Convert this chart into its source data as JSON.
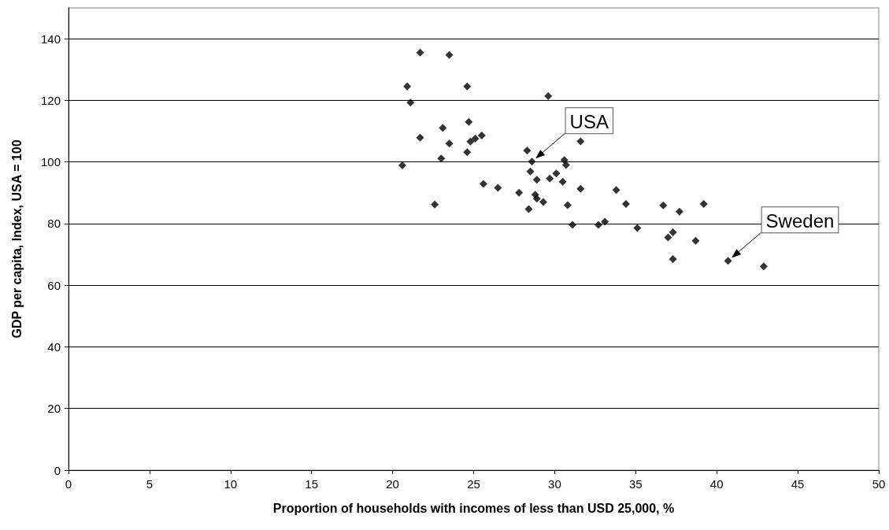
{
  "chart_data": {
    "type": "scatter",
    "xlabel": "Proportion of households with incomes of less than USD 25,000, %",
    "ylabel": "GDP per capita, Index, USA = 100",
    "xlim": [
      0,
      50
    ],
    "xticks": [
      0,
      5,
      10,
      15,
      20,
      25,
      30,
      35,
      40,
      45,
      50
    ],
    "ylim": [
      0,
      150
    ],
    "yticks": [
      0,
      20,
      40,
      60,
      80,
      100,
      120,
      140
    ],
    "grid": "y",
    "marker": "diamond",
    "color": "#000000",
    "x": [
      21.7,
      23.5,
      20.9,
      24.6,
      29.6,
      21.1,
      24.7,
      23.1,
      25.5,
      21.7,
      25.1,
      24.8,
      23.5,
      31.6,
      24.6,
      28.3,
      23.0,
      20.6,
      28.6,
      30.6,
      30.7,
      28.5,
      30.1,
      28.9,
      29.7,
      30.5,
      25.6,
      31.6,
      26.5,
      27.8,
      28.8,
      28.9,
      29.3,
      22.6,
      30.8,
      28.4,
      33.8,
      34.4,
      31.1,
      32.7,
      33.1,
      35.1,
      36.7,
      37.7,
      39.2,
      37.3,
      37.0,
      38.7,
      37.3,
      40.7,
      42.9
    ],
    "values": [
      135.5,
      134.7,
      124.5,
      124.5,
      121.4,
      119.3,
      113.0,
      111.0,
      108.6,
      107.9,
      107.6,
      106.6,
      106.0,
      106.7,
      103.2,
      103.7,
      101.1,
      98.9,
      100.1,
      100.6,
      99.0,
      96.9,
      96.3,
      94.2,
      94.6,
      93.6,
      92.9,
      91.3,
      91.6,
      90.0,
      89.4,
      88.1,
      87.0,
      86.2,
      86.0,
      84.7,
      90.9,
      86.4,
      79.6,
      79.6,
      80.6,
      78.6,
      85.9,
      83.9,
      86.4,
      77.2,
      75.5,
      74.4,
      68.5,
      67.9,
      66.1
    ],
    "annotations": [
      {
        "text": "USA",
        "x": 28.6,
        "y": 100.1
      },
      {
        "text": "Sweden",
        "x": 40.7,
        "y": 67.9
      }
    ]
  }
}
